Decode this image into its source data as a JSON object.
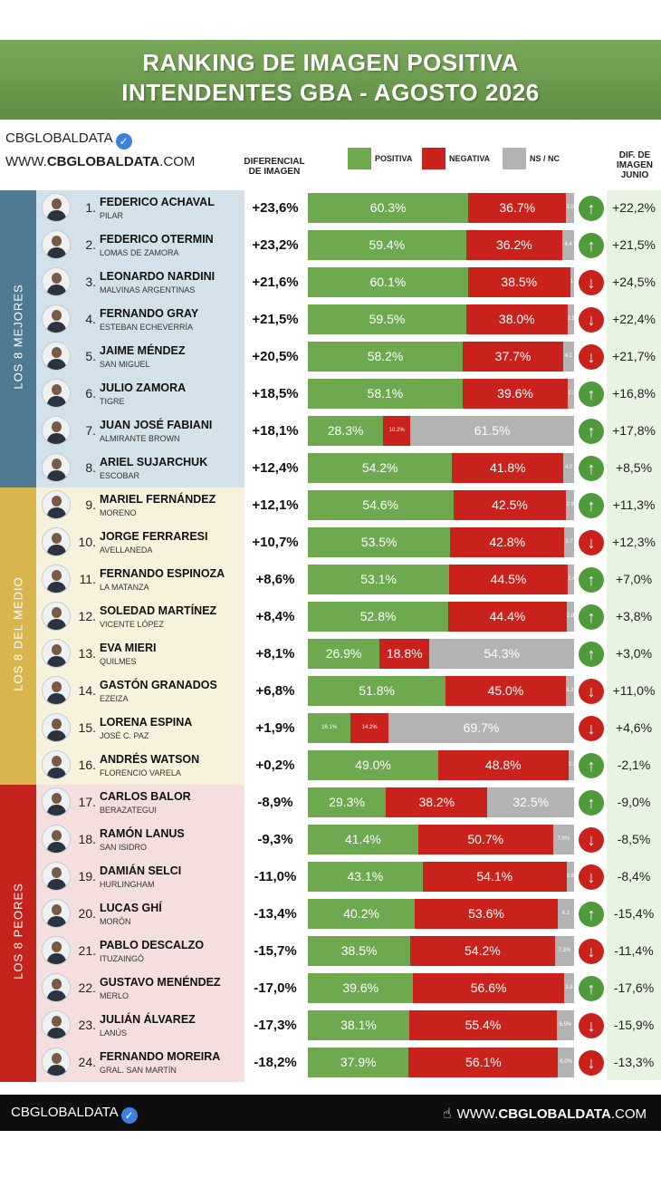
{
  "header": {
    "title_line1": "RANKING DE IMAGEN POSITIVA",
    "title_line2": "INTENDENTES GBA - AGOSTO 2026"
  },
  "brand": {
    "name": "CBGLOBALDATA",
    "website_prefix": "WWW.",
    "website_bold": "CBGLOBALDATA",
    "website_suffix": ".COM"
  },
  "columns": {
    "diff_line1": "DIFERENCIAL",
    "diff_line2": "DE IMAGEN",
    "junio_line1": "DIF. DE",
    "junio_line2": "IMAGEN",
    "junio_line3": "JUNIO"
  },
  "legend": {
    "positiva": "POSITIVA",
    "negativa": "NEGATIVA",
    "nsnc": "NS / NC"
  },
  "colors": {
    "positiva": "#6fa94f",
    "negativa": "#c9221d",
    "nsnc": "#b3b3b3",
    "up": "#4f9a3a",
    "down": "#c9221d"
  },
  "groups": [
    {
      "label": "LOS 8 MEJORES"
    },
    {
      "label": "LOS 8 DEL MEDIO"
    },
    {
      "label": "LOS 8 PEORES"
    }
  ],
  "chart_data": {
    "type": "bar",
    "stacked": true,
    "title": "RANKING DE IMAGEN POSITIVA INTENDENTES GBA - AGOSTO 2026",
    "series_names": [
      "POSITIVA",
      "NEGATIVA",
      "NS / NC"
    ],
    "rows": [
      {
        "rank": "1.",
        "name": "FEDERICO ACHAVAL",
        "municipio": "PILAR",
        "diff": "+23,6%",
        "pos": 60.3,
        "neg": 36.7,
        "ns": 3.0,
        "pos_label": "60.3%",
        "neg_label": "36.7%",
        "ns_label": "3.0",
        "trend": "up",
        "junio": "+22,2%"
      },
      {
        "rank": "2.",
        "name": "FEDERICO OTERMIN",
        "municipio": "LOMAS DE ZAMORA",
        "diff": "+23,2%",
        "pos": 59.4,
        "neg": 36.2,
        "ns": 4.4,
        "pos_label": "59.4%",
        "neg_label": "36.2%",
        "ns_label": "4.4",
        "trend": "up",
        "junio": "+21,5%"
      },
      {
        "rank": "3.",
        "name": "LEONARDO NARDINI",
        "municipio": "MALVINAS ARGENTINAS",
        "diff": "+21,6%",
        "pos": 60.1,
        "neg": 38.5,
        "ns": 1.4,
        "pos_label": "60.1%",
        "neg_label": "38.5%",
        "ns_label": "1.4",
        "trend": "down",
        "junio": "+24,5%"
      },
      {
        "rank": "4.",
        "name": "FERNANDO GRAY",
        "municipio": "ESTEBAN ECHEVERRÍA",
        "diff": "+21,5%",
        "pos": 59.5,
        "neg": 38.0,
        "ns": 2.5,
        "pos_label": "59.5%",
        "neg_label": "38.0%",
        "ns_label": "2.5",
        "trend": "down",
        "junio": "+22,4%"
      },
      {
        "rank": "5.",
        "name": "JAIME MÉNDEZ",
        "municipio": "SAN MIGUEL",
        "diff": "+20,5%",
        "pos": 58.2,
        "neg": 37.7,
        "ns": 4.1,
        "pos_label": "58.2%",
        "neg_label": "37.7%",
        "ns_label": "4.1",
        "trend": "down",
        "junio": "+21,7%"
      },
      {
        "rank": "6.",
        "name": "JULIO ZAMORA",
        "municipio": "TIGRE",
        "diff": "+18,5%",
        "pos": 58.1,
        "neg": 39.6,
        "ns": 2.3,
        "pos_label": "58.1%",
        "neg_label": "39.6%",
        "ns_label": "2.3",
        "trend": "up",
        "junio": "+16,8%"
      },
      {
        "rank": "7.",
        "name": "JUAN JOSÉ FABIANI",
        "municipio": "ALMIRANTE BROWN",
        "diff": "+18,1%",
        "pos": 28.3,
        "neg": 10.2,
        "ns": 61.5,
        "pos_label": "28.3%",
        "neg_label": "10.2%",
        "ns_label": "61.5%",
        "trend": "up",
        "junio": "+17,8%"
      },
      {
        "rank": "8.",
        "name": "ARIEL SUJARCHUK",
        "municipio": "ESCOBAR",
        "diff": "+12,4%",
        "pos": 54.2,
        "neg": 41.8,
        "ns": 4.0,
        "pos_label": "54.2%",
        "neg_label": "41.8%",
        "ns_label": "4.0",
        "trend": "up",
        "junio": "+8,5%"
      },
      {
        "rank": "9.",
        "name": "MARIEL FERNÁNDEZ",
        "municipio": "MORENO",
        "diff": "+12,1%",
        "pos": 54.6,
        "neg": 42.5,
        "ns": 2.9,
        "pos_label": "54.6%",
        "neg_label": "42.5%",
        "ns_label": "2.9",
        "trend": "up",
        "junio": "+11,3%"
      },
      {
        "rank": "10.",
        "name": "JORGE FERRARESI",
        "municipio": "AVELLANEDA",
        "diff": "+10,7%",
        "pos": 53.5,
        "neg": 42.8,
        "ns": 3.7,
        "pos_label": "53.5%",
        "neg_label": "42.8%",
        "ns_label": "3.7",
        "trend": "down",
        "junio": "+12,3%"
      },
      {
        "rank": "11.",
        "name": "FERNANDO ESPINOZA",
        "municipio": "LA MATANZA",
        "diff": "+8,6%",
        "pos": 53.1,
        "neg": 44.5,
        "ns": 2.4,
        "pos_label": "53.1%",
        "neg_label": "44.5%",
        "ns_label": "2.4",
        "trend": "up",
        "junio": "+7,0%"
      },
      {
        "rank": "12.",
        "name": "SOLEDAD MARTÍNEZ",
        "municipio": "VICENTE LÓPEZ",
        "diff": "+8,4%",
        "pos": 52.8,
        "neg": 44.4,
        "ns": 2.8,
        "pos_label": "52.8%",
        "neg_label": "44.4%",
        "ns_label": "2.8",
        "trend": "up",
        "junio": "+3,8%"
      },
      {
        "rank": "13.",
        "name": "EVA MIERI",
        "municipio": "QUILMES",
        "diff": "+8,1%",
        "pos": 26.9,
        "neg": 18.8,
        "ns": 54.3,
        "pos_label": "26.9%",
        "neg_label": "18.8%",
        "ns_label": "54.3%",
        "trend": "up",
        "junio": "+3,0%"
      },
      {
        "rank": "14.",
        "name": "GASTÓN GRANADOS",
        "municipio": "EZEIZA",
        "diff": "+6,8%",
        "pos": 51.8,
        "neg": 45.0,
        "ns": 3.2,
        "pos_label": "51.8%",
        "neg_label": "45.0%",
        "ns_label": "3.2",
        "trend": "down",
        "junio": "+11,0%"
      },
      {
        "rank": "15.",
        "name": "LORENA ESPINA",
        "municipio": "JOSÉ C. PAZ",
        "diff": "+1,9%",
        "pos": 16.1,
        "neg": 14.2,
        "ns": 69.7,
        "pos_label": "16.1%",
        "neg_label": "14.2%",
        "ns_label": "69.7%",
        "trend": "down",
        "junio": "+4,6%"
      },
      {
        "rank": "16.",
        "name": "ANDRÉS WATSON",
        "municipio": "FLORENCIO VARELA",
        "diff": "+0,2%",
        "pos": 49.0,
        "neg": 48.8,
        "ns": 2.2,
        "pos_label": "49.0%",
        "neg_label": "48.8%",
        "ns_label": "2.2",
        "trend": "up",
        "junio": "-2,1%"
      },
      {
        "rank": "17.",
        "name": "CARLOS BALOR",
        "municipio": "BERAZATEGUI",
        "diff": "-8,9%",
        "pos": 29.3,
        "neg": 38.2,
        "ns": 32.5,
        "pos_label": "29.3%",
        "neg_label": "38.2%",
        "ns_label": "32.5%",
        "trend": "up",
        "junio": "-9,0%"
      },
      {
        "rank": "18.",
        "name": "RAMÓN LANUS",
        "municipio": "SAN ISIDRO",
        "diff": "-9,3%",
        "pos": 41.4,
        "neg": 50.7,
        "ns": 7.9,
        "pos_label": "41.4%",
        "neg_label": "50.7%",
        "ns_label": "7.9%",
        "trend": "down",
        "junio": "-8,5%"
      },
      {
        "rank": "19.",
        "name": "DAMIÁN SELCI",
        "municipio": "HURLINGHAM",
        "diff": "-11,0%",
        "pos": 43.1,
        "neg": 54.1,
        "ns": 2.8,
        "pos_label": "43.1%",
        "neg_label": "54.1%",
        "ns_label": "2.8",
        "trend": "down",
        "junio": "-8,4%"
      },
      {
        "rank": "20.",
        "name": "LUCAS GHÍ",
        "municipio": "MORÓN",
        "diff": "-13,4%",
        "pos": 40.2,
        "neg": 53.6,
        "ns": 6.2,
        "pos_label": "40.2%",
        "neg_label": "53.6%",
        "ns_label": "6.2",
        "trend": "up",
        "junio": "-15,4%"
      },
      {
        "rank": "21.",
        "name": "PABLO DESCALZO",
        "municipio": "ITUZAINGÓ",
        "diff": "-15,7%",
        "pos": 38.5,
        "neg": 54.2,
        "ns": 7.3,
        "pos_label": "38.5%",
        "neg_label": "54.2%",
        "ns_label": "7.3%",
        "trend": "down",
        "junio": "-11,4%"
      },
      {
        "rank": "22.",
        "name": "GUSTAVO MENÉNDEZ",
        "municipio": "MERLO",
        "diff": "-17,0%",
        "pos": 39.6,
        "neg": 56.6,
        "ns": 3.8,
        "pos_label": "39.6%",
        "neg_label": "56.6%",
        "ns_label": "3.8",
        "trend": "up",
        "junio": "-17,6%"
      },
      {
        "rank": "23.",
        "name": "JULIÁN ÁLVAREZ",
        "municipio": "LANÚS",
        "diff": "-17,3%",
        "pos": 38.1,
        "neg": 55.4,
        "ns": 6.5,
        "pos_label": "38.1%",
        "neg_label": "55.4%",
        "ns_label": "6.5%",
        "trend": "down",
        "junio": "-15,9%"
      },
      {
        "rank": "24.",
        "name": "FERNANDO MOREIRA",
        "municipio": "GRAL. SAN MARTÍN",
        "diff": "-18,2%",
        "pos": 37.9,
        "neg": 56.1,
        "ns": 6.0,
        "pos_label": "37.9%",
        "neg_label": "56.1%",
        "ns_label": "6.0%",
        "trend": "down",
        "junio": "-13,3%"
      }
    ]
  },
  "footer": {
    "brand": "CBGLOBALDATA",
    "website_prefix": "WWW.",
    "website_bold": "CBGLOBALDATA",
    "website_suffix": ".COM"
  }
}
